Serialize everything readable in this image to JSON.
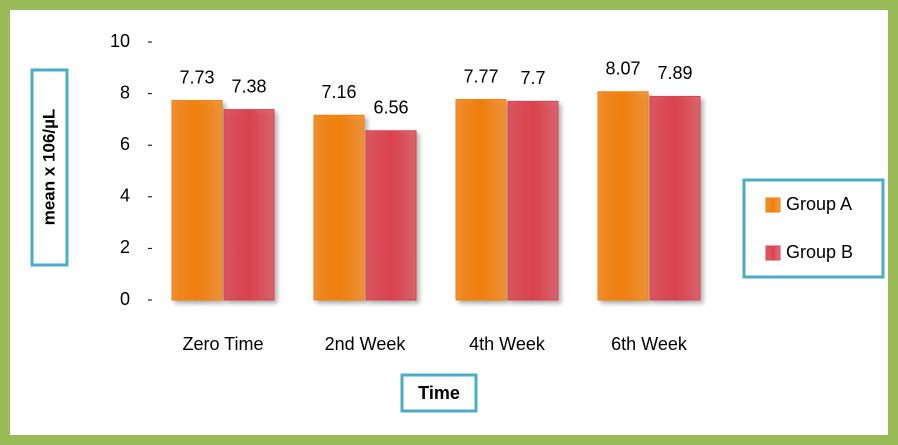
{
  "chart_data": {
    "type": "bar",
    "categories": [
      "Zero Time",
      "2nd Week",
      "4th Week",
      "6th Week"
    ],
    "series": [
      {
        "name": "Group A",
        "color": "#f07f09",
        "values": [
          7.73,
          7.16,
          7.77,
          8.07
        ]
      },
      {
        "name": "Group B",
        "color": "#d9434e",
        "values": [
          7.38,
          6.56,
          7.7,
          7.89
        ]
      }
    ],
    "ylim": [
      0,
      10
    ],
    "yticks": [
      0,
      2,
      4,
      6,
      8,
      10
    ],
    "y_label": "mean x 106/µL",
    "x_label": "Time",
    "legend": "right",
    "grid": false
  }
}
